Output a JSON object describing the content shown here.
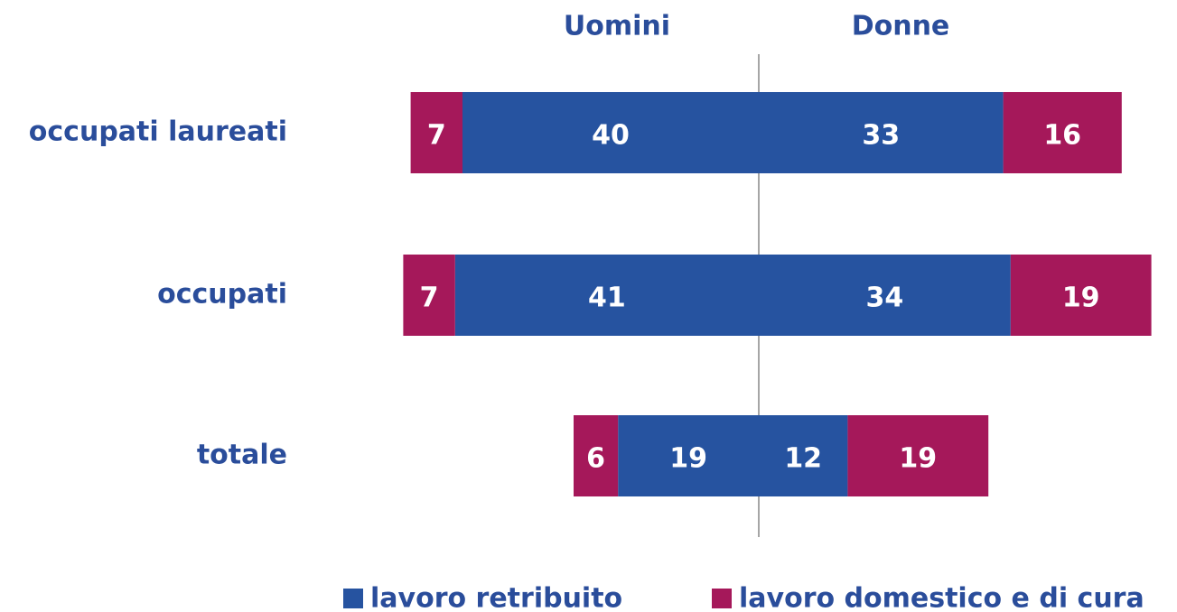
{
  "chart_data": {
    "type": "diverging_bar",
    "sides": [
      "Uomini",
      "Donne"
    ],
    "categories": [
      "occupati laureati",
      "occupati",
      "totale"
    ],
    "series": [
      {
        "name": "lavoro retribuito",
        "color": "#2653a0",
        "left": [
          40,
          41,
          19
        ],
        "right": [
          33,
          34,
          12
        ]
      },
      {
        "name": "lavoro domestico e di cura",
        "color": "#a5185a",
        "left": [
          7,
          7,
          6
        ],
        "right": [
          16,
          19,
          19
        ]
      }
    ]
  }
}
